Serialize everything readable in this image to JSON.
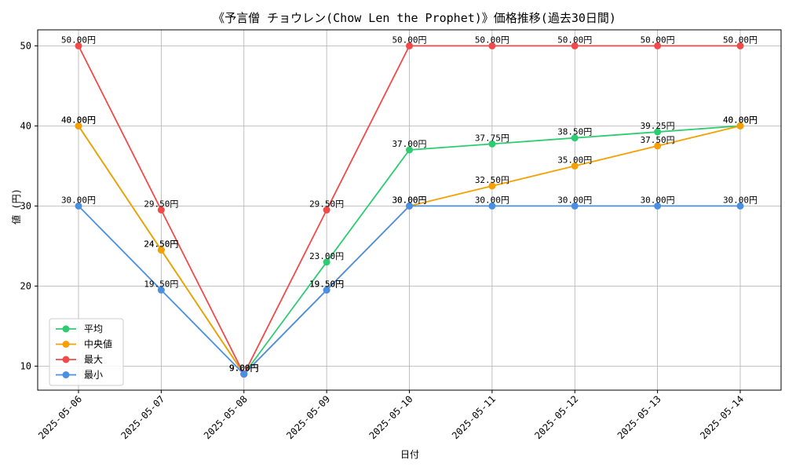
{
  "chart_data": {
    "type": "line",
    "title": "《予言僧 チョウレン(Chow Len the Prophet)》価格推移(過去30日間)",
    "xlabel": "日付",
    "ylabel": "値 (円)",
    "categories": [
      "2025-05-06",
      "2025-05-07",
      "2025-05-08",
      "2025-05-09",
      "2025-05-10",
      "2025-05-11",
      "2025-05-12",
      "2025-05-13",
      "2025-05-14"
    ],
    "ylim": [
      7,
      52
    ],
    "yticks": [
      10,
      20,
      30,
      40,
      50
    ],
    "grid": true,
    "legend_position": "lower-left",
    "value_suffix": "円",
    "series": [
      {
        "name": "平均",
        "color": "#2ecc71",
        "values": [
          40.0,
          24.5,
          9.0,
          23.0,
          37.0,
          37.75,
          38.5,
          39.25,
          40.0
        ]
      },
      {
        "name": "中央値",
        "color": "#f5a000",
        "values": [
          40.0,
          24.5,
          9.0,
          19.5,
          30.0,
          32.5,
          35.0,
          37.5,
          40.0
        ]
      },
      {
        "name": "最大",
        "color": "#f04a4a",
        "values": [
          50.0,
          29.5,
          9.0,
          29.5,
          50.0,
          50.0,
          50.0,
          50.0,
          50.0
        ]
      },
      {
        "name": "最小",
        "color": "#4a90e2",
        "values": [
          30.0,
          19.5,
          9.0,
          19.5,
          30.0,
          30.0,
          30.0,
          30.0,
          30.0
        ]
      }
    ]
  }
}
